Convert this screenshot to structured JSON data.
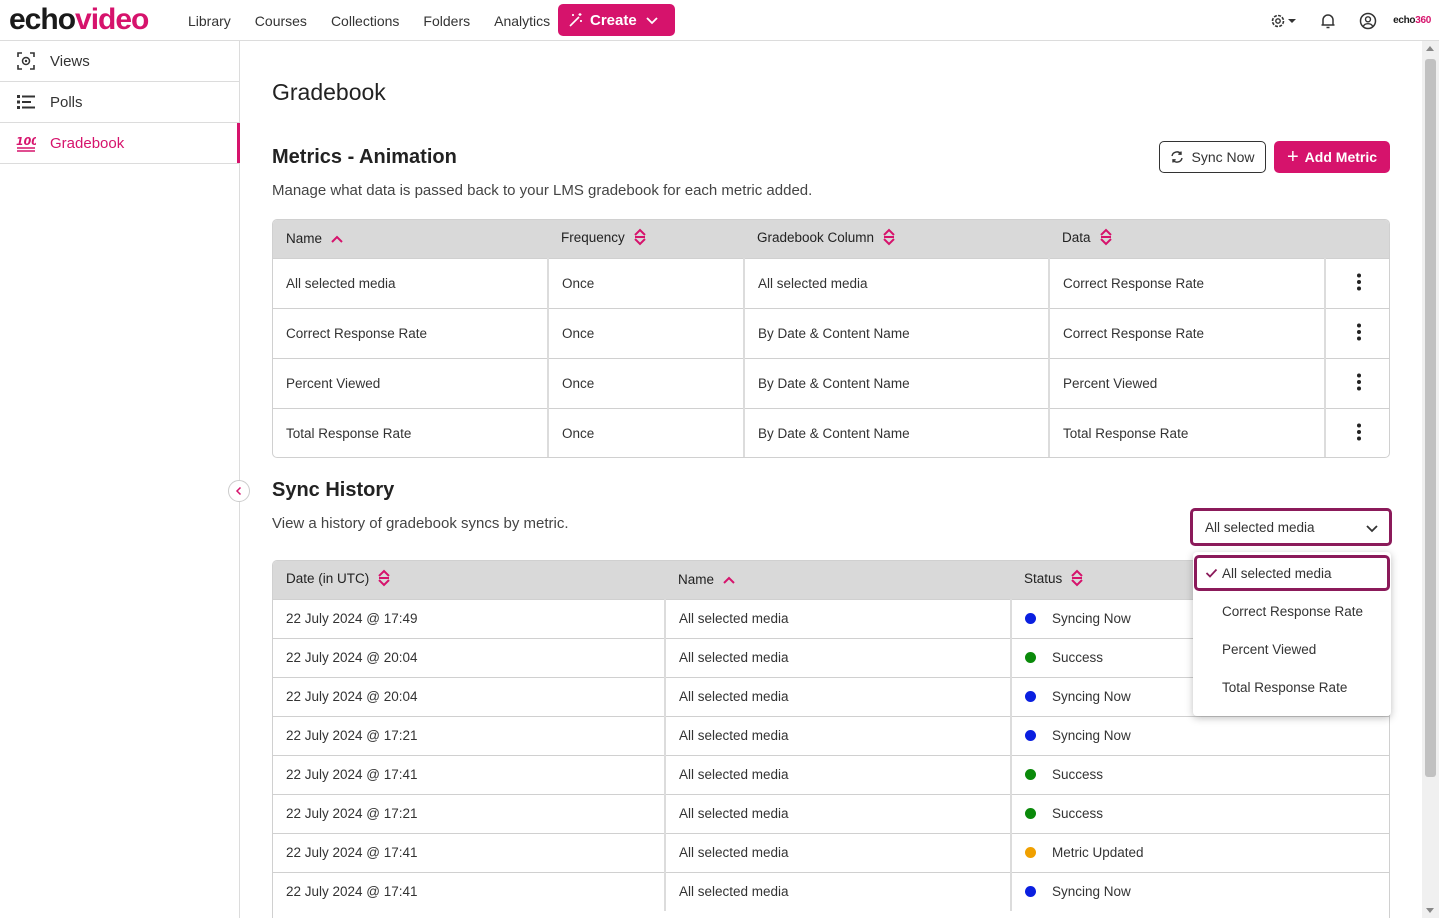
{
  "brand": {
    "echo": "echo",
    "video": "video",
    "small_echo": "echo",
    "small_360": "360"
  },
  "nav": [
    "Library",
    "Courses",
    "Collections",
    "Folders",
    "Analytics"
  ],
  "create_label": "Create",
  "sidebar": {
    "items": [
      {
        "label": "Views",
        "icon": "views-icon"
      },
      {
        "label": "Polls",
        "icon": "polls-icon"
      },
      {
        "label": "Gradebook",
        "icon": "gradebook-100-icon",
        "active": true
      }
    ]
  },
  "page_title": "Gradebook",
  "metrics": {
    "title": "Metrics - Animation",
    "description": "Manage what data is passed back to your LMS gradebook for each metric added.",
    "sync_now_label": "Sync Now",
    "add_metric_label": "Add Metric",
    "columns": [
      "Name",
      "Frequency",
      "Gradebook Column",
      "Data"
    ],
    "rows": [
      [
        "All selected media",
        "Once",
        "All selected media",
        "Correct Response Rate"
      ],
      [
        "Correct Response Rate",
        "Once",
        "By Date & Content Name",
        "Correct Response Rate"
      ],
      [
        "Percent Viewed",
        "Once",
        "By Date & Content Name",
        "Percent Viewed"
      ],
      [
        "Total Response Rate",
        "Once",
        "By Date & Content Name",
        "Total Response Rate"
      ]
    ]
  },
  "sync_history": {
    "title": "Sync History",
    "description": "View a history of gradebook syncs by metric.",
    "filter": {
      "selected": "All selected media",
      "options": [
        "All selected media",
        "Correct Response Rate",
        "Percent Viewed",
        "Total Response Rate"
      ]
    },
    "columns": [
      "Date (in UTC)",
      "Name",
      "Status"
    ],
    "rows": [
      [
        "22 July 2024 @ 17:49",
        "All selected media",
        "Syncing Now"
      ],
      [
        "22 July 2024 @ 20:04",
        "All selected media",
        "Success"
      ],
      [
        "22 July 2024 @ 20:04",
        "All selected media",
        "Syncing Now"
      ],
      [
        "22 July 2024 @ 17:21",
        "All selected media",
        "Syncing Now"
      ],
      [
        "22 July 2024 @ 17:41",
        "All selected media",
        "Success"
      ],
      [
        "22 July 2024 @ 17:21",
        "All selected media",
        "Success"
      ],
      [
        "22 July 2024 @ 17:41",
        "All selected media",
        "Metric Updated"
      ],
      [
        "22 July 2024 @ 17:41",
        "All selected media",
        "Syncing Now"
      ]
    ],
    "status_colors": {
      "Syncing Now": "#0a1fe0",
      "Success": "#0a8a0a",
      "Metric Updated": "#f0a000"
    }
  },
  "colors": {
    "accent": "#d6136c",
    "focus": "#8b1a5a"
  }
}
